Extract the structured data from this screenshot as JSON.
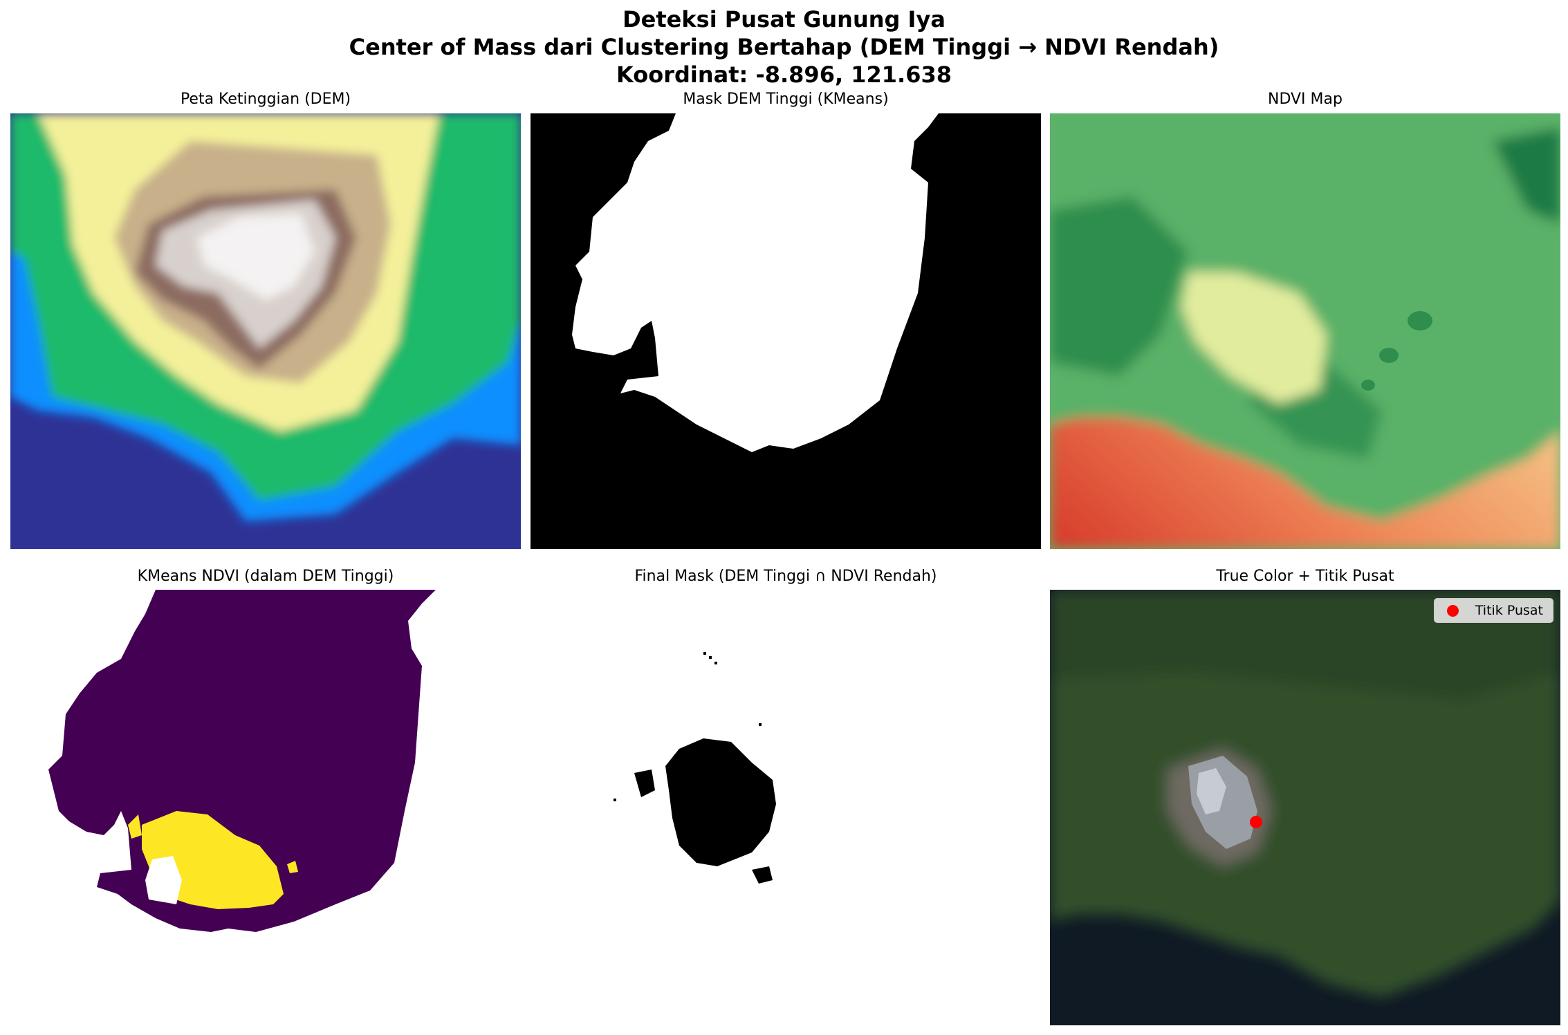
{
  "figure": {
    "title_lines": [
      "Deteksi Pusat Gunung Iya",
      "Center of Mass dari Clustering Bertahap (DEM Tinggi → NDVI Rendah)",
      "Koordinat: -8.896, 121.638"
    ]
  },
  "panels": [
    {
      "title": "Peta Ketinggian (DEM)"
    },
    {
      "title": "Mask DEM Tinggi (KMeans)"
    },
    {
      "title": "NDVI Map"
    },
    {
      "title": "KMeans NDVI (dalam DEM Tinggi)"
    },
    {
      "title": "Final Mask (DEM Tinggi ∩ NDVI Rendah)"
    },
    {
      "title": "True Color + Titik Pusat"
    }
  ],
  "legend": {
    "label": "Titik Pusat",
    "color": "#ff0000",
    "icon": "circle-marker-icon"
  },
  "colors": {
    "dem_low": "#2e3192",
    "dem_blue": "#0a8fff",
    "dem_green": "#1fba6a",
    "dem_yellow": "#f5f29a",
    "dem_brown": "#7a5a50",
    "dem_high": "#ffffff",
    "viridis_low": "#440154",
    "viridis_high": "#fde725",
    "ndvi_green": "#3a9a55",
    "ndvi_red": "#d73027",
    "marker": "#ff0000"
  },
  "chart_data": [
    {
      "type": "heatmap",
      "title": "Peta Ketinggian (DEM)",
      "colormap": "terrain",
      "axes": "off"
    },
    {
      "type": "heatmap",
      "title": "Mask DEM Tinggi (KMeans)",
      "colormap": "gray",
      "axes": "off"
    },
    {
      "type": "heatmap",
      "title": "NDVI Map",
      "colormap": "RdYlGn",
      "axes": "off"
    },
    {
      "type": "heatmap",
      "title": "KMeans NDVI (dalam DEM Tinggi)",
      "colormap": "viridis",
      "axes": "off"
    },
    {
      "type": "heatmap",
      "title": "Final Mask (DEM Tinggi ∩ NDVI Rendah)",
      "colormap": "gray_r",
      "axes": "off"
    },
    {
      "type": "scatter",
      "title": "True Color + Titik Pusat",
      "axes": "off",
      "legend": {
        "entries": [
          "Titik Pusat"
        ],
        "placement": "top-right"
      },
      "series": [
        {
          "name": "Titik Pusat",
          "color": "#ff0000"
        }
      ]
    }
  ]
}
